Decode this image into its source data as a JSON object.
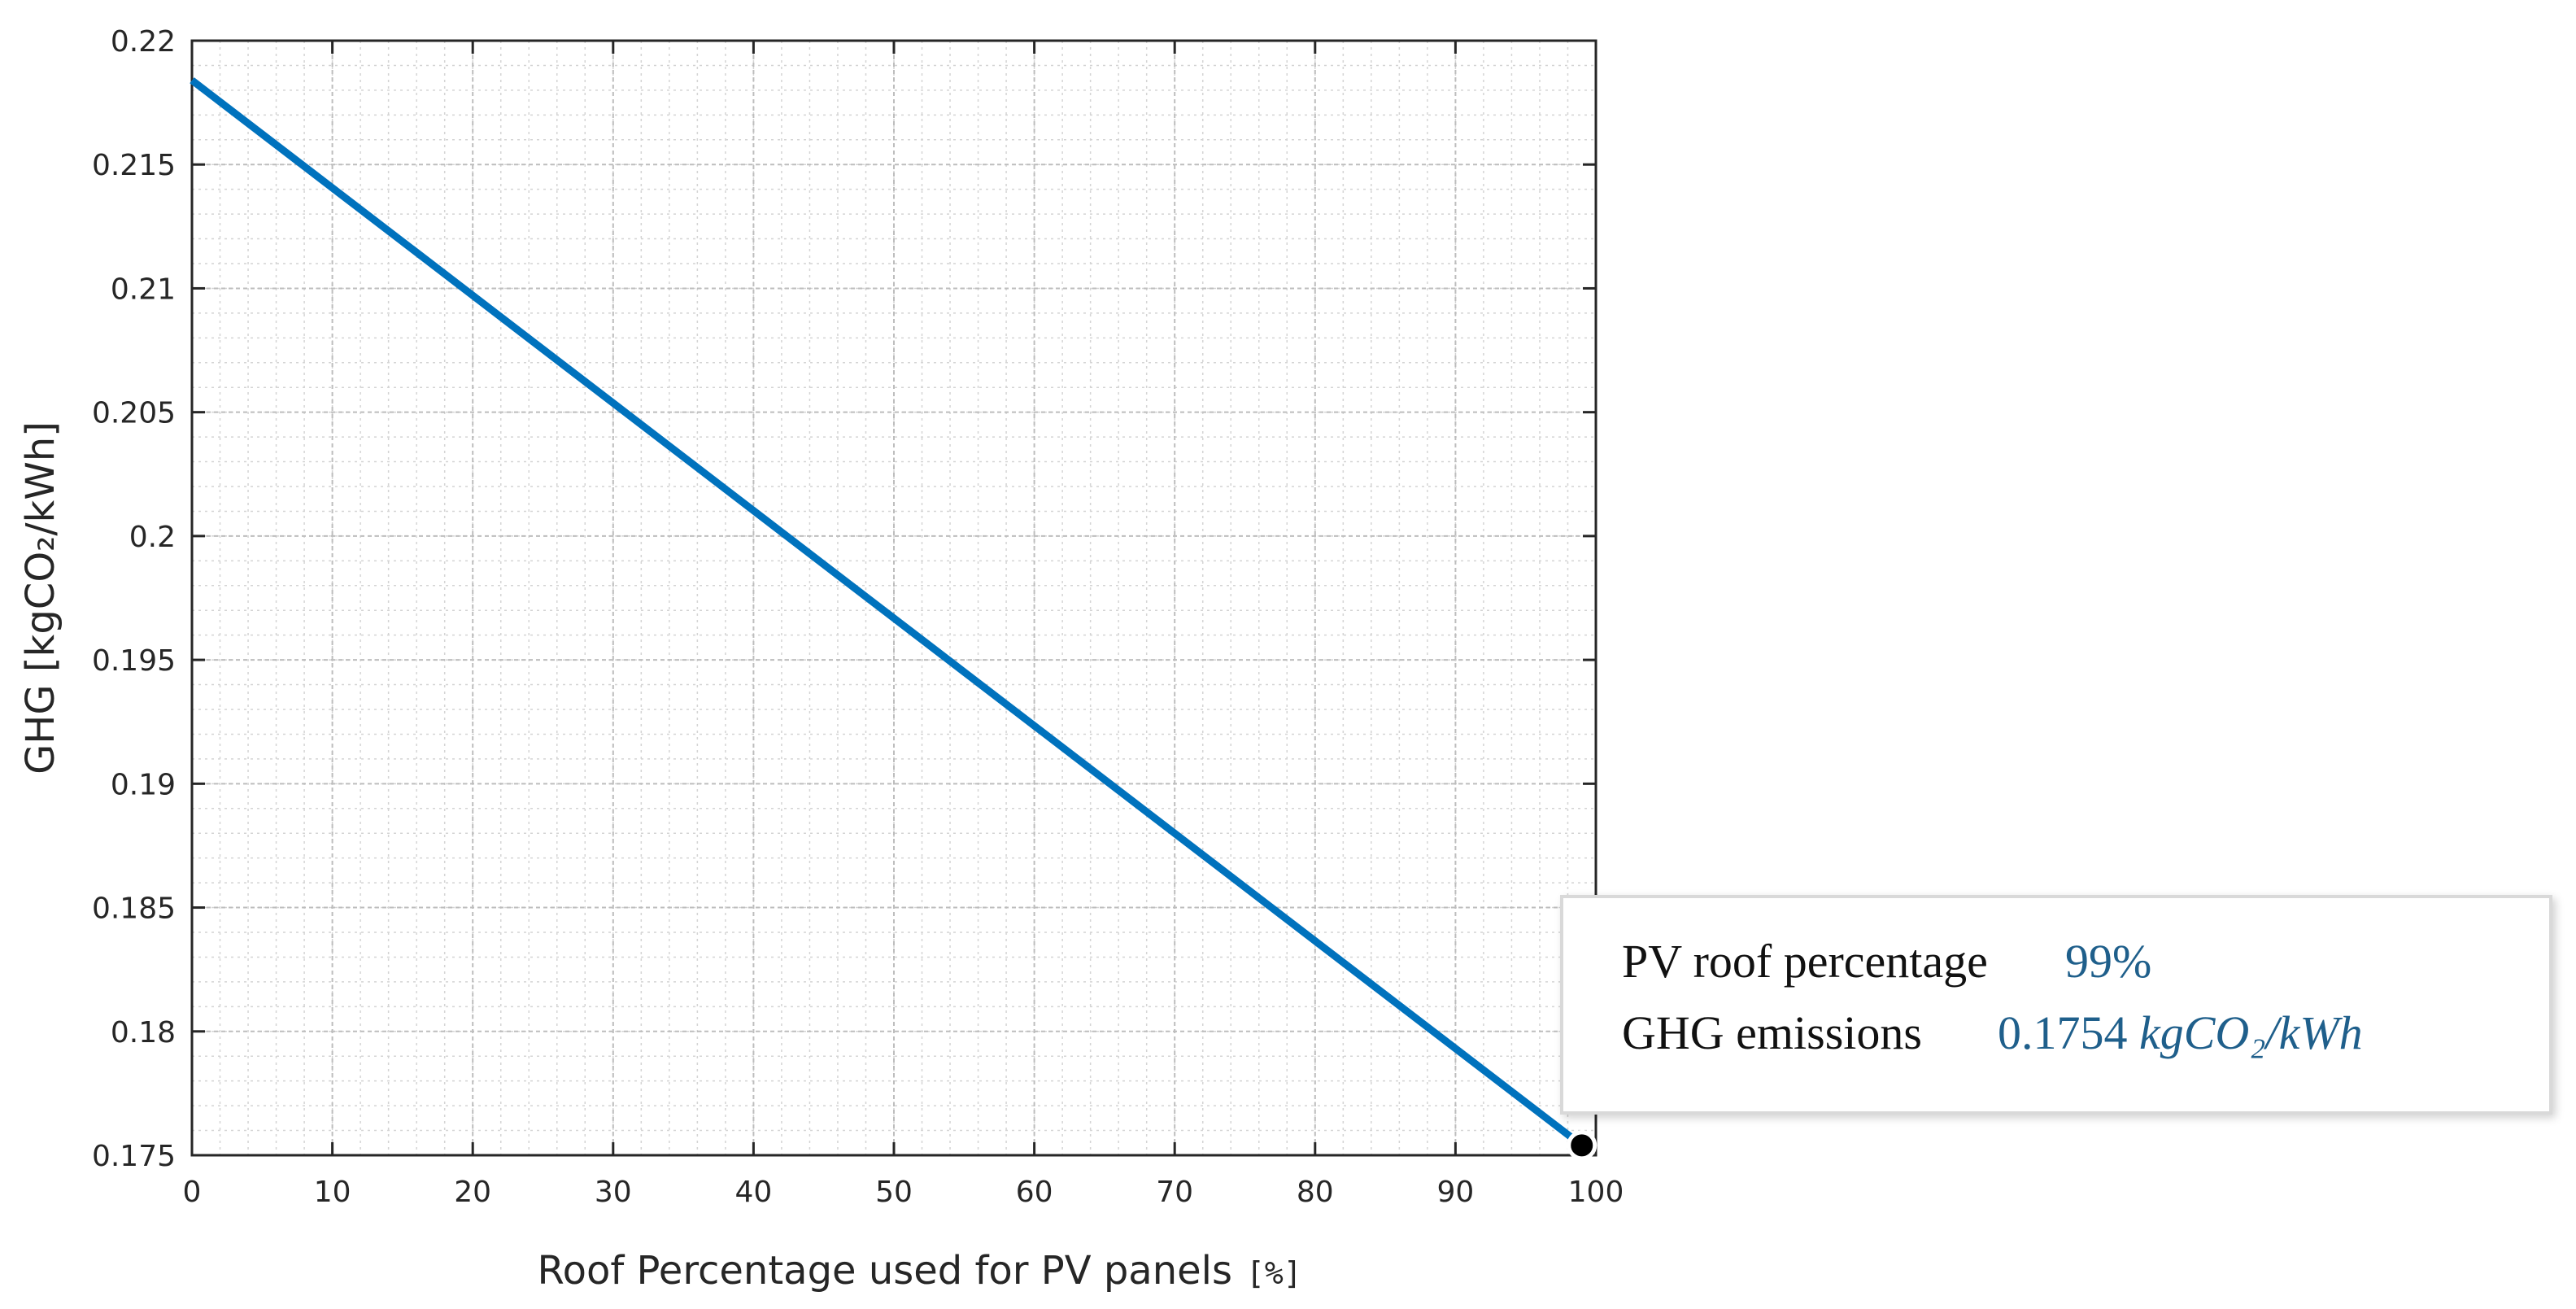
{
  "chart_data": {
    "type": "line",
    "title": "",
    "xlabel": "Roof Percentage used for PV panels",
    "xlabel_unit": "[%]",
    "ylabel": "GHG [kgCO₂/kWh]",
    "xlim": [
      0,
      100
    ],
    "ylim": [
      0.175,
      0.22
    ],
    "xticks": [
      "0",
      "10",
      "20",
      "30",
      "40",
      "50",
      "60",
      "70",
      "80",
      "90",
      "100"
    ],
    "yticks": [
      "0.175",
      "0.18",
      "0.185",
      "0.19",
      "0.195",
      "0.2",
      "0.205",
      "0.21",
      "0.215",
      "0.22"
    ],
    "grid": true,
    "series": [
      {
        "name": "GHG",
        "color": "#0072BD",
        "x": [
          0,
          99
        ],
        "y": [
          0.2184,
          0.1754
        ]
      }
    ],
    "marker": {
      "x": 99,
      "y": 0.1754,
      "color": "#000000"
    },
    "annotation": {
      "line1_label": "PV roof percentage",
      "line1_value": "99%",
      "line2_label": "GHG emissions",
      "line2_value_number": "0.1754",
      "line2_value_unit": "kgCO₂/kWh"
    }
  }
}
